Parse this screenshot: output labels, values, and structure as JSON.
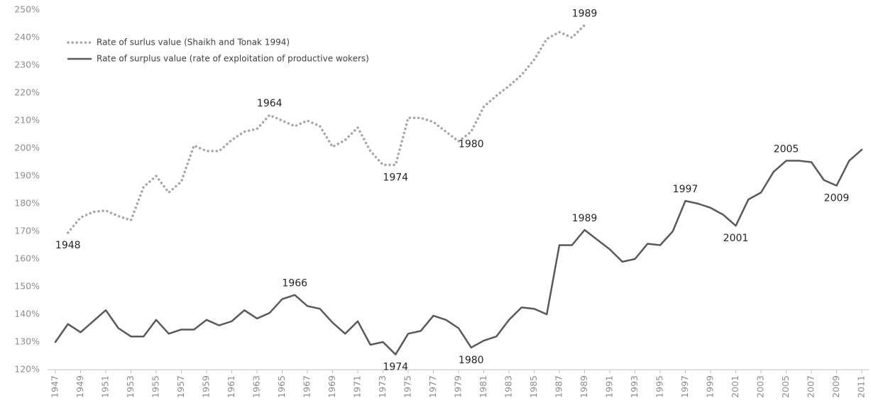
{
  "chart_data": {
    "type": "line",
    "x": [
      1947,
      1948,
      1949,
      1950,
      1951,
      1952,
      1953,
      1954,
      1955,
      1956,
      1957,
      1958,
      1959,
      1960,
      1961,
      1962,
      1963,
      1964,
      1965,
      1966,
      1967,
      1968,
      1969,
      1970,
      1971,
      1972,
      1973,
      1974,
      1975,
      1976,
      1977,
      1978,
      1979,
      1980,
      1981,
      1982,
      1983,
      1984,
      1985,
      1986,
      1987,
      1988,
      1989,
      1990,
      1991,
      1992,
      1993,
      1994,
      1995,
      1996,
      1997,
      1998,
      1999,
      2000,
      2001,
      2002,
      2003,
      2004,
      2005,
      2006,
      2007,
      2008,
      2009,
      2010,
      2011
    ],
    "series": [
      {
        "name": "Rate of surlus value (Shaikh and Tonak 1994)",
        "color": "#a6a6a6",
        "style": "dotted",
        "values": [
          null,
          169.5,
          175,
          177,
          177.5,
          175.5,
          174,
          186,
          190,
          184,
          188,
          201,
          199,
          199,
          203,
          206,
          207,
          212,
          210,
          208,
          210,
          208,
          200.5,
          203,
          207.5,
          199,
          194,
          194,
          211,
          211,
          209.5,
          206,
          202.5,
          206,
          215,
          219,
          222.5,
          226.5,
          232,
          239.5,
          242,
          240,
          244.5,
          null,
          null,
          null,
          null,
          null,
          null,
          null,
          null,
          null,
          null,
          null,
          null,
          null,
          null,
          null,
          null,
          null,
          null,
          null,
          null,
          null,
          null
        ],
        "annotations": [
          {
            "x": 1948,
            "label": "1948"
          },
          {
            "x": 1964,
            "label": "1964"
          },
          {
            "x": 1974,
            "label": "1974"
          },
          {
            "x": 1980,
            "label": "1980"
          },
          {
            "x": 1989,
            "label": "1989"
          }
        ]
      },
      {
        "name": "Rate of surplus value (rate of exploitation of productive wokers)",
        "color": "#595959",
        "style": "solid",
        "values": [
          130,
          136.5,
          133.5,
          137.5,
          141.5,
          135,
          132,
          132,
          138,
          133,
          134.5,
          134.5,
          138,
          136,
          137.5,
          141.5,
          138.5,
          140.5,
          145.5,
          147,
          143,
          142,
          137,
          133,
          137.5,
          129,
          130,
          125.5,
          133,
          134,
          139.5,
          138,
          135,
          128,
          130.5,
          132,
          138,
          142.5,
          142,
          140,
          165,
          165,
          170.5,
          167,
          163.5,
          159,
          160,
          165.5,
          165,
          170,
          181,
          180,
          178.5,
          176,
          172,
          181.5,
          184,
          191.5,
          195.5,
          195.5,
          195,
          188.5,
          186.5,
          195.5,
          199.5
        ],
        "annotations": [
          {
            "x": 1966,
            "label": "1966"
          },
          {
            "x": 1974,
            "label": "1974"
          },
          {
            "x": 1980,
            "label": "1980"
          },
          {
            "x": 1989,
            "label": "1989"
          },
          {
            "x": 1997,
            "label": "1997"
          },
          {
            "x": 2001,
            "label": "2001"
          },
          {
            "x": 2005,
            "label": "2005"
          },
          {
            "x": 2009,
            "label": "2009"
          }
        ]
      }
    ],
    "xlim": [
      1947,
      2011
    ],
    "xticks": [
      1947,
      1949,
      1951,
      1953,
      1955,
      1957,
      1959,
      1961,
      1963,
      1965,
      1967,
      1969,
      1971,
      1973,
      1975,
      1977,
      1979,
      1981,
      1983,
      1985,
      1987,
      1989,
      1991,
      1993,
      1995,
      1997,
      1999,
      2001,
      2003,
      2005,
      2007,
      2009,
      2011
    ],
    "ylim": [
      120,
      250
    ],
    "yticks": [
      {
        "value": 120,
        "label": "120%"
      },
      {
        "value": 130,
        "label": "130%"
      },
      {
        "value": 140,
        "label": "140%"
      },
      {
        "value": 150,
        "label": "150%"
      },
      {
        "value": 160,
        "label": "160%"
      },
      {
        "value": 170,
        "label": "170%"
      },
      {
        "value": 180,
        "label": "180%"
      },
      {
        "value": 190,
        "label": "190%"
      },
      {
        "value": 200,
        "label": "200%"
      },
      {
        "value": 210,
        "label": "210%"
      },
      {
        "value": 220,
        "label": "220%"
      },
      {
        "value": 230,
        "label": "230%"
      },
      {
        "value": 240,
        "label": "240%"
      },
      {
        "value": 250,
        "label": "250%"
      }
    ],
    "grid": false,
    "legend": "upper left"
  }
}
